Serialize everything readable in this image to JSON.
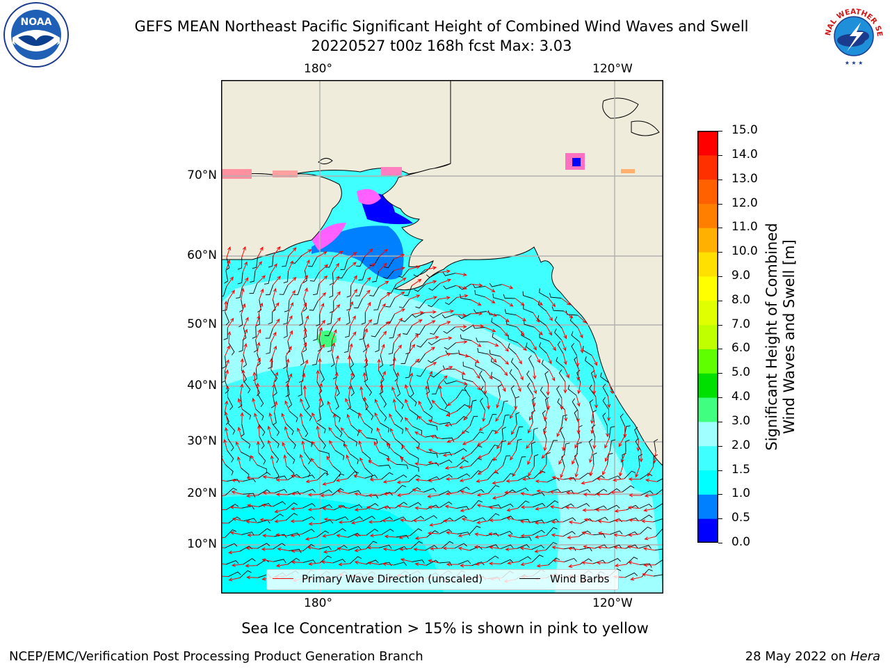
{
  "title_line1": "GEFS MEAN Northeast Pacific Significant Height of Combined Wind Waves and Swell",
  "title_line2": "20220527 t00z 168h fcst   Max: 3.03",
  "lon_labels_top": [
    "180°",
    "120°W"
  ],
  "lon_labels_bottom": [
    "180°",
    "120°W"
  ],
  "lat_labels": [
    "70°N",
    "60°N",
    "50°N",
    "40°N",
    "30°N",
    "20°N",
    "10°N"
  ],
  "colorbar": {
    "title_line1": "Significant Height of Combined",
    "title_line2": "Wind Waves and Swell [m]",
    "tick_labels": [
      "15.0",
      "14.0",
      "13.0",
      "12.0",
      "11.0",
      "10.0",
      "9.0",
      "8.0",
      "7.0",
      "6.0",
      "5.0",
      "4.0",
      "3.0",
      "2.0",
      "1.5",
      "1.0",
      "0.5",
      "0.0"
    ],
    "colors": [
      "#0000ff",
      "#0080ff",
      "#00ffff",
      "#40ffff",
      "#a0ffff",
      "#40ff80",
      "#00e000",
      "#60ff00",
      "#c0ff00",
      "#e0ff00",
      "#ffff00",
      "#ffe000",
      "#ffb000",
      "#ff8000",
      "#ff6000",
      "#ff3000",
      "#ff0000"
    ]
  },
  "legend": {
    "wave_label": "Primary Wave Direction (unscaled)",
    "wave_color": "#ff0000",
    "barb_label": "Wind Barbs",
    "barb_color": "#000000"
  },
  "note": "Sea Ice Concentration > 15% is shown in pink to yellow",
  "credit": "NCEP/EMC/Verification Post Processing Product Generation Branch",
  "date_text": "28 May 2022 on",
  "machine": "Hera",
  "logos": {
    "noaa_text": "NOAA",
    "nws_text": "NATIONAL WEATHER SERVICE",
    "noaa_icon": "noaa-logo",
    "nws_icon": "nws-logo"
  },
  "colors": {
    "land": "#efecdc",
    "grid": "#b0b0b0"
  }
}
